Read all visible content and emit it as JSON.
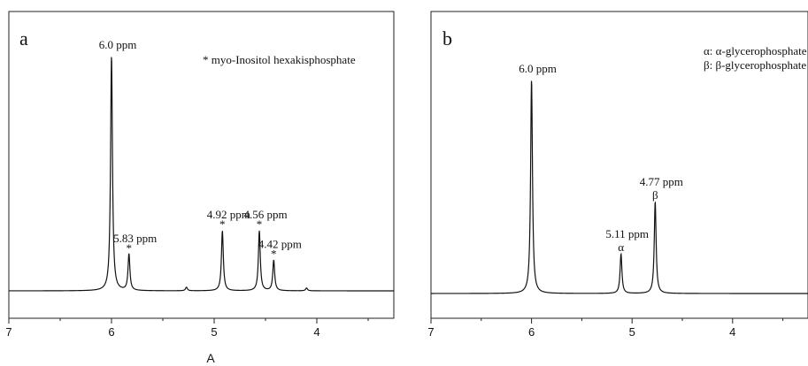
{
  "figure_label": "A",
  "chart_data": [
    {
      "type": "line",
      "panel_label": "a",
      "xlim": [
        7,
        3.25
      ],
      "x_ticks": [
        "7",
        "6",
        "5",
        "4"
      ],
      "legend_text": "* myo-Inositol hexakisphosphate",
      "grid": false,
      "series": [
        {
          "peaks": [
            {
              "ppm": 6.0,
              "height": 1.0
            },
            {
              "ppm": 5.83,
              "height": 0.155
            },
            {
              "ppm": 5.27,
              "height": 0.015
            },
            {
              "ppm": 4.92,
              "height": 0.255
            },
            {
              "ppm": 4.56,
              "height": 0.255
            },
            {
              "ppm": 4.42,
              "height": 0.13
            },
            {
              "ppm": 4.1,
              "height": 0.012
            }
          ]
        }
      ],
      "annotations": [
        {
          "ppm": 6.0,
          "text": "6.0 ppm",
          "star": ""
        },
        {
          "ppm": 5.83,
          "text": "5.83 ppm",
          "star": "*"
        },
        {
          "ppm": 4.92,
          "text": "4.92 ppm",
          "star": "*"
        },
        {
          "ppm": 4.56,
          "text": "4.56 ppm",
          "star": "*"
        },
        {
          "ppm": 4.42,
          "text": "4.42 ppm",
          "star": "*"
        }
      ]
    },
    {
      "type": "line",
      "panel_label": "b",
      "xlim": [
        7,
        3.25
      ],
      "x_ticks": [
        "7",
        "6",
        "5",
        "4"
      ],
      "legend_lines": [
        "α: α-glycerophosphate",
        "β: β-glycerophosphate"
      ],
      "grid": false,
      "series": [
        {
          "peaks": [
            {
              "ppm": 6.0,
              "height": 1.0
            },
            {
              "ppm": 5.11,
              "height": 0.185
            },
            {
              "ppm": 4.77,
              "height": 0.43
            }
          ]
        }
      ],
      "annotations": [
        {
          "ppm": 6.0,
          "text": "6.0 ppm",
          "star": ""
        },
        {
          "ppm": 5.11,
          "text": "5.11 ppm",
          "star": "α"
        },
        {
          "ppm": 4.77,
          "text": "4.77 ppm",
          "star": "β"
        }
      ]
    }
  ]
}
